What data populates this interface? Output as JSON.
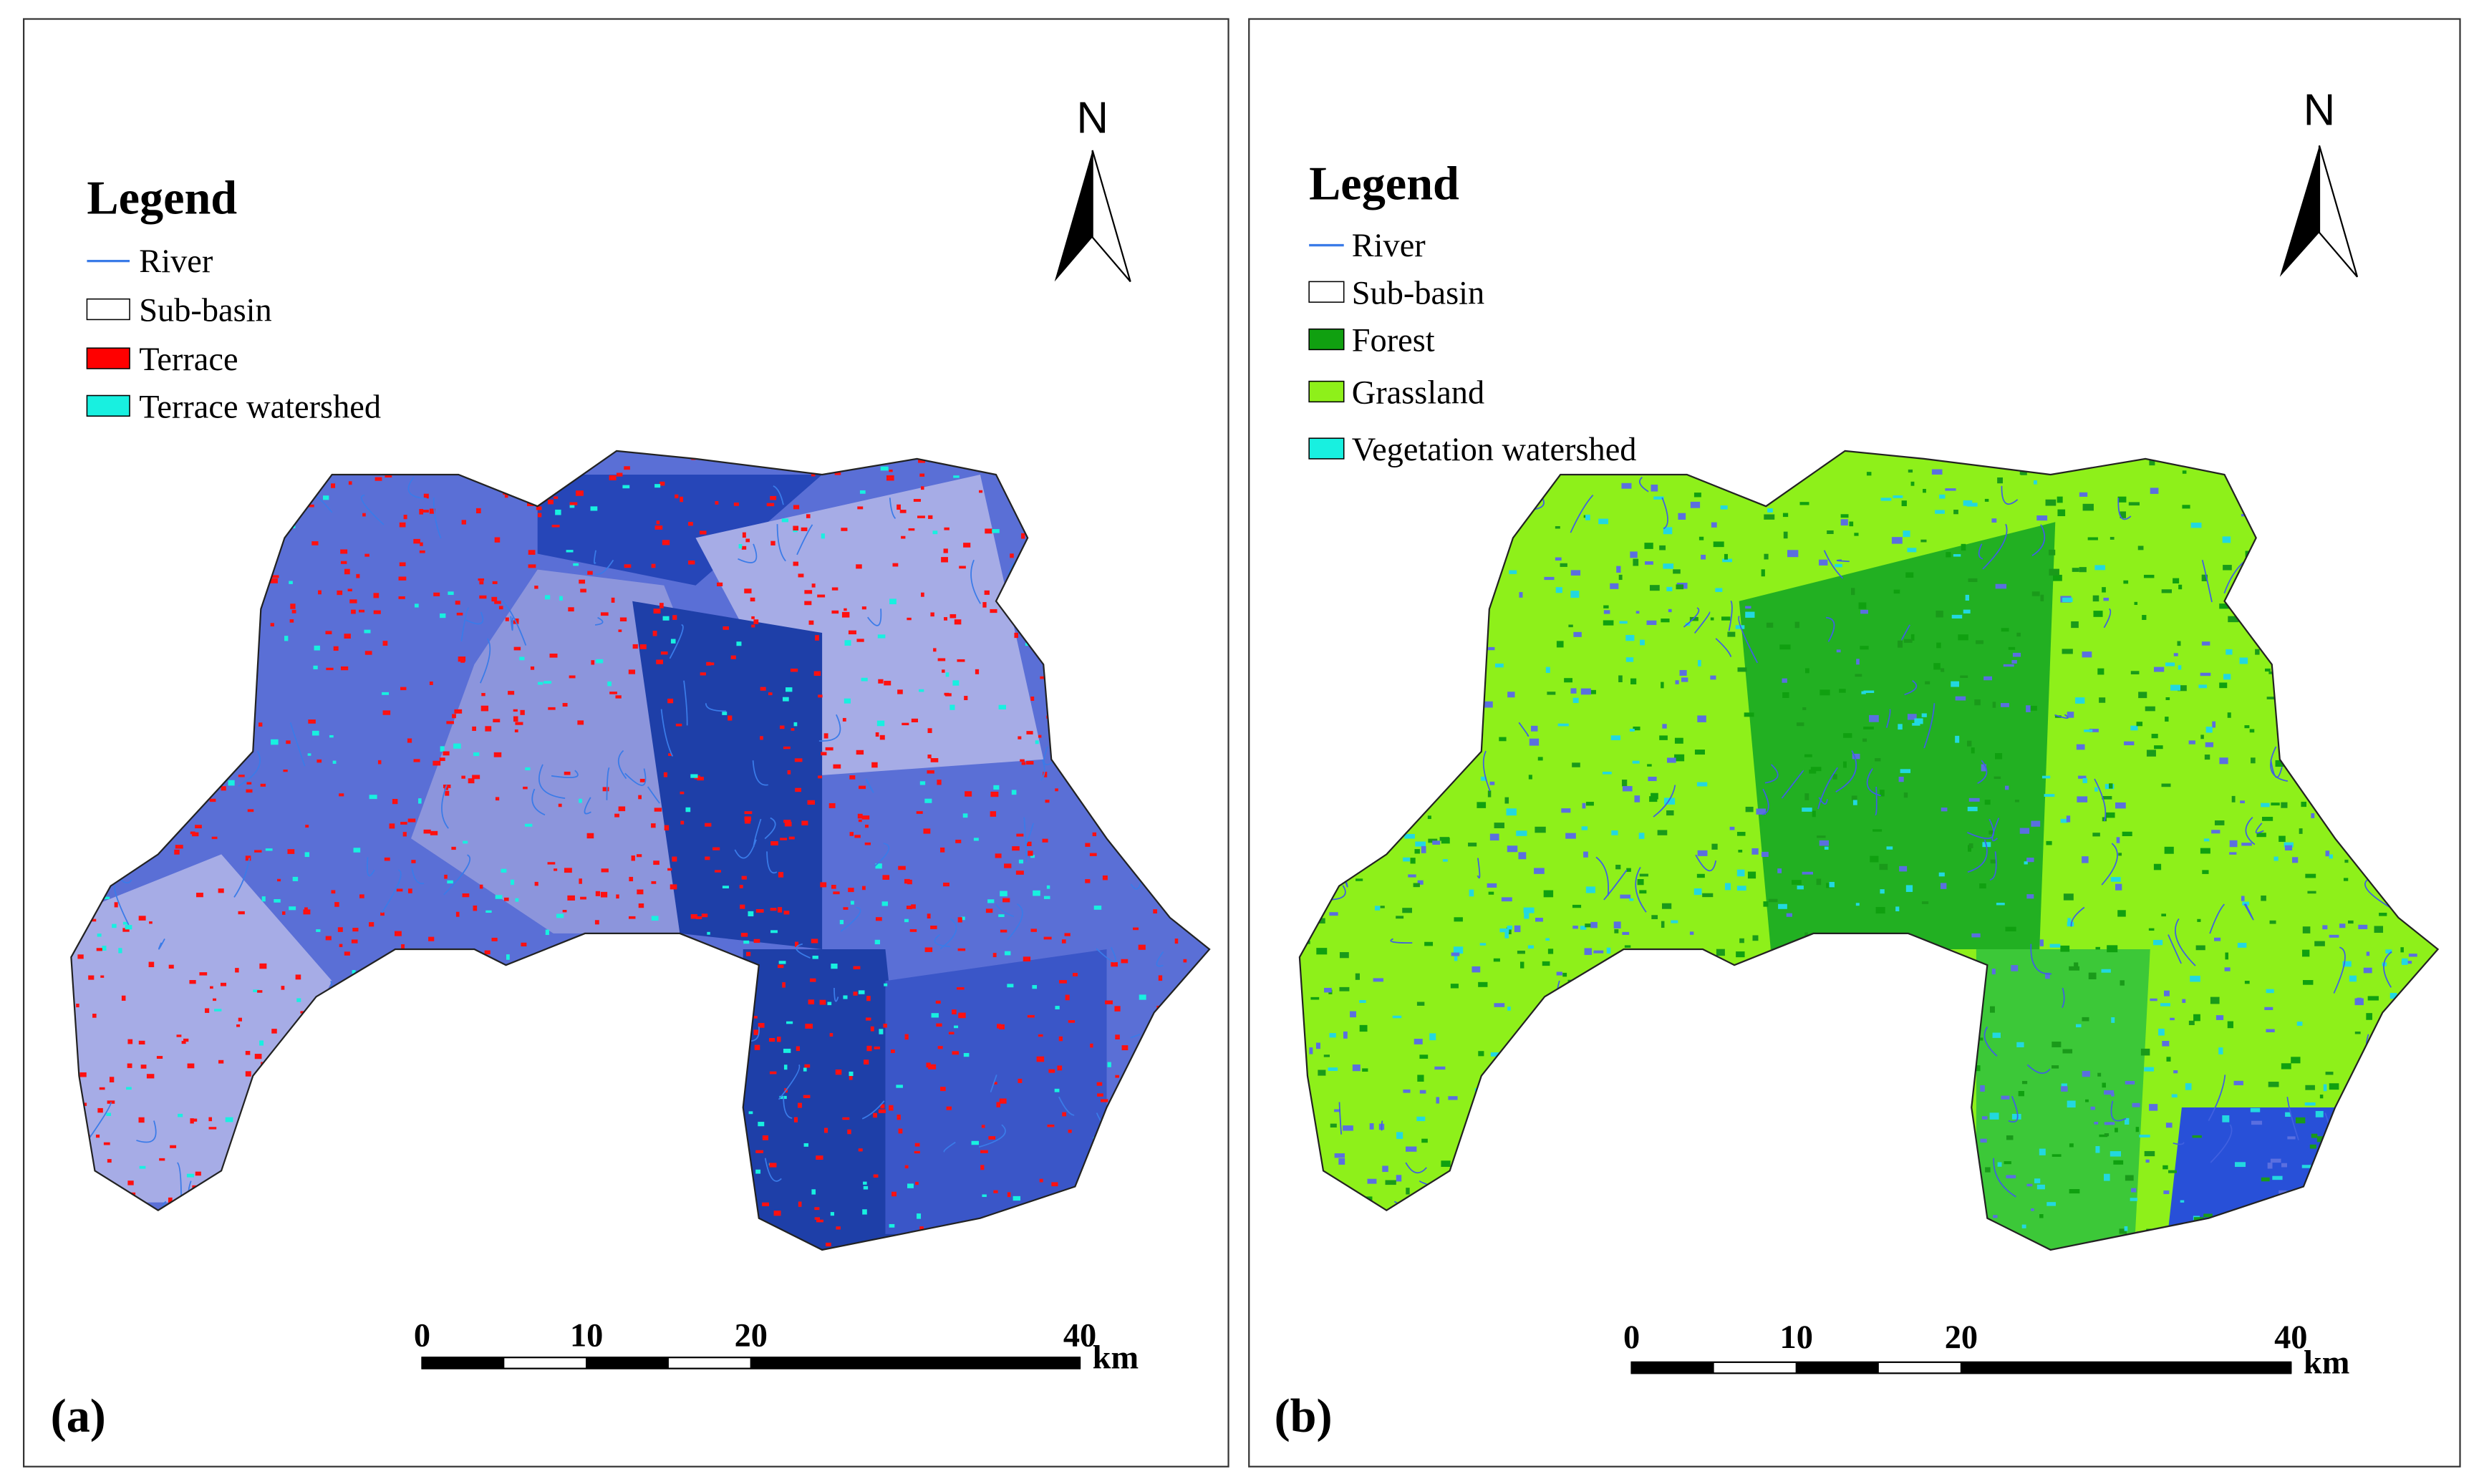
{
  "panels": [
    {
      "label": "(a)",
      "legend": {
        "title": "Legend",
        "items": [
          "River",
          "Sub-basin",
          "Terrace",
          "Terrace watershed"
        ]
      },
      "north": "N",
      "scale": {
        "ticks": [
          0,
          10,
          20,
          40
        ],
        "unit": "km"
      }
    },
    {
      "label": "(b)",
      "legend": {
        "title": "Legend",
        "items": [
          "River",
          "Sub-basin",
          "Forest",
          "Grassland",
          "Vegetation watershed"
        ]
      },
      "north": "N",
      "scale": {
        "ticks": [
          0,
          10,
          20,
          40
        ],
        "unit": "km"
      }
    }
  ]
}
